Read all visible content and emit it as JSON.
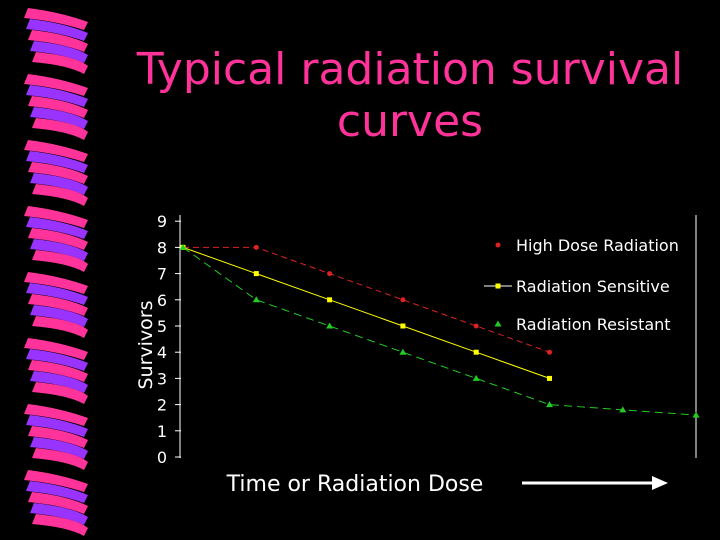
{
  "slide": {
    "title_line1": "Typical radiation survival",
    "title_line2": "curves"
  },
  "colors": {
    "background": "#000000",
    "title": "#ff3399",
    "spiral_pink": "#ff3399",
    "spiral_purple": "#9933ff"
  },
  "chart_data": {
    "type": "line",
    "ylabel": "Survivors",
    "xlabel": "Time or Radiation Dose",
    "ylim": [
      0,
      9
    ],
    "yticks": [
      "0",
      "1",
      "2",
      "3",
      "4",
      "5",
      "6",
      "7",
      "8",
      "9"
    ],
    "x": [
      0,
      1,
      2,
      3,
      4,
      5,
      6,
      7
    ],
    "grid": false,
    "legend_position": "top-right",
    "arrow": "right",
    "series": [
      {
        "name": "High Dose Radiation",
        "color": "#dd2222",
        "dash": "6,4",
        "marker": "circle",
        "x": [
          0,
          1,
          2,
          3,
          4,
          5
        ],
        "values": [
          8,
          8,
          7,
          6,
          5,
          4
        ]
      },
      {
        "name": "Radiation Sensitive",
        "color": "#ffff00",
        "dash": "none",
        "marker": "square",
        "x": [
          0,
          1,
          2,
          3,
          4,
          5
        ],
        "values": [
          8,
          7,
          6,
          5,
          4,
          3
        ]
      },
      {
        "name": "Radiation Resistant",
        "color": "#22cc22",
        "dash": "8,5",
        "marker": "triangle",
        "x": [
          0,
          1,
          2,
          3,
          4,
          5,
          6,
          7
        ],
        "values": [
          8,
          6,
          5,
          4,
          3,
          2,
          1.8,
          1.6
        ]
      }
    ]
  }
}
